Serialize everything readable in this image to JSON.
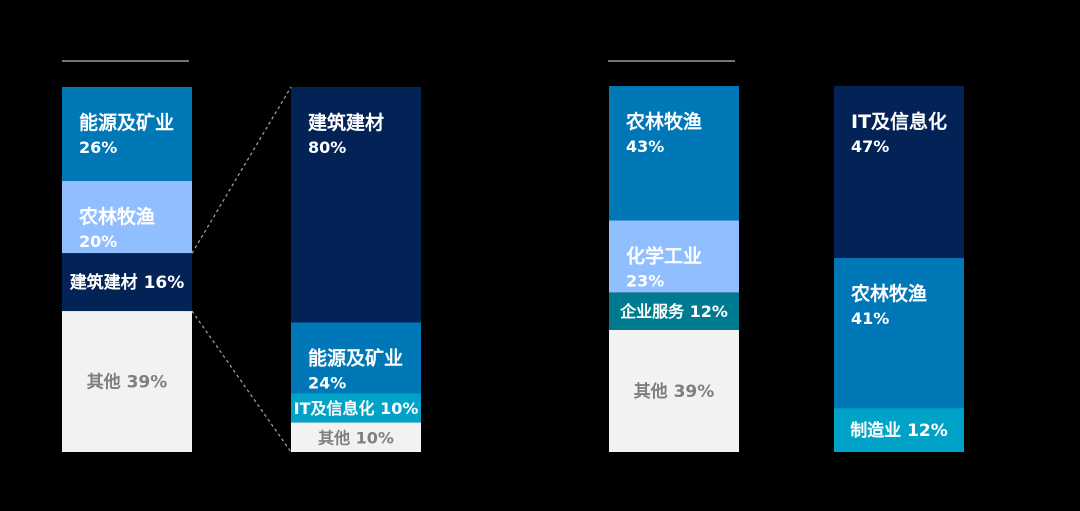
{
  "chart_data": {
    "type": "bar",
    "stacked": true,
    "unit": "%",
    "colors": {
      "dark_navy": "#032357",
      "mid_blue": "#0077B6",
      "light_blue": "#91BEFF",
      "cyan": "#00A3C7",
      "teal": "#007A8F",
      "gray": "#F2F2F2",
      "gray_text": "#7F7F7F",
      "line": "#9A9A9A"
    },
    "bars": [
      {
        "name": "",
        "segments": [
          {
            "category": "能源及矿业",
            "value": 26,
            "color": "mid_blue",
            "text": "能源及矿业",
            "value_text": "26%",
            "layout": "stacked"
          },
          {
            "category": "农林牧渔",
            "value": 20,
            "color": "light_blue",
            "text": "农林牧渔",
            "value_text": "20%",
            "layout": "stacked"
          },
          {
            "category": "建筑建材",
            "value": 16,
            "color": "dark_navy",
            "text": "建筑建材 16%",
            "layout": "inline"
          },
          {
            "category": "其他",
            "value": 39,
            "color": "gray",
            "text": "其他 39%",
            "layout": "inline",
            "text_color": "gray_text"
          }
        ]
      },
      {
        "name": "",
        "segments": [
          {
            "category": "建筑建材",
            "value": 80,
            "color": "dark_navy",
            "text": "建筑建材",
            "value_text": "80%",
            "layout": "stacked"
          },
          {
            "category": "能源及矿业",
            "value": 24,
            "color": "mid_blue",
            "text": "能源及矿业",
            "value_text": "24%",
            "layout": "stacked"
          },
          {
            "category": "IT及信息化",
            "value": 10,
            "color": "cyan",
            "text": "IT及信息化 10%",
            "layout": "inline"
          },
          {
            "category": "其他",
            "value": 10,
            "color": "gray",
            "text": "其他 10%",
            "layout": "inline",
            "text_color": "gray_text"
          }
        ]
      },
      {
        "name": "",
        "segments": [
          {
            "category": "农林牧渔",
            "value": 43,
            "color": "mid_blue",
            "text": "农林牧渔",
            "value_text": "43%",
            "layout": "stacked"
          },
          {
            "category": "化学工业",
            "value": 23,
            "color": "light_blue",
            "text": "化学工业",
            "value_text": "23%",
            "layout": "stacked"
          },
          {
            "category": "企业服务",
            "value": 12,
            "color": "teal",
            "text": "企业服务 12%",
            "layout": "inline"
          },
          {
            "category": "其他",
            "value": 39,
            "color": "gray",
            "text": "其他 39%",
            "layout": "inline",
            "text_color": "gray_text"
          }
        ]
      },
      {
        "name": "",
        "segments": [
          {
            "category": "IT及信息化",
            "value": 47,
            "color": "dark_navy",
            "text": "IT及信息化",
            "value_text": "47%",
            "layout": "stacked"
          },
          {
            "category": "农林牧渔",
            "value": 41,
            "color": "mid_blue",
            "text": "农林牧渔",
            "value_text": "41%",
            "layout": "stacked"
          },
          {
            "category": "制造业",
            "value": 12,
            "color": "cyan",
            "text": "制造业 12%",
            "layout": "inline"
          }
        ]
      }
    ],
    "connector": {
      "from_bar": 0,
      "from_segment": 2,
      "to_bar": 1
    }
  }
}
